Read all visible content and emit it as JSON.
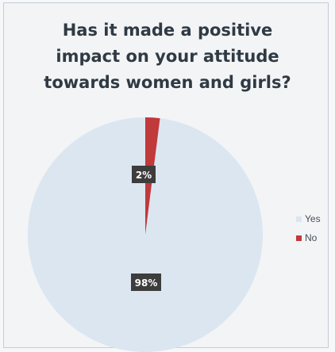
{
  "chart_data": {
    "type": "pie",
    "title_lines": [
      "Has it made a positive",
      "impact on your attitude",
      "towards women and girls?"
    ],
    "slices": [
      {
        "label": "Yes",
        "value": 98,
        "data_label": "98%",
        "color": "#dce6f1"
      },
      {
        "label": "No",
        "value": 2,
        "data_label": "2%",
        "color": "#c0393b"
      }
    ],
    "legend_position": "right",
    "data_label_style": {
      "background": "#3d3d3d",
      "text_color": "#ffffff"
    }
  }
}
